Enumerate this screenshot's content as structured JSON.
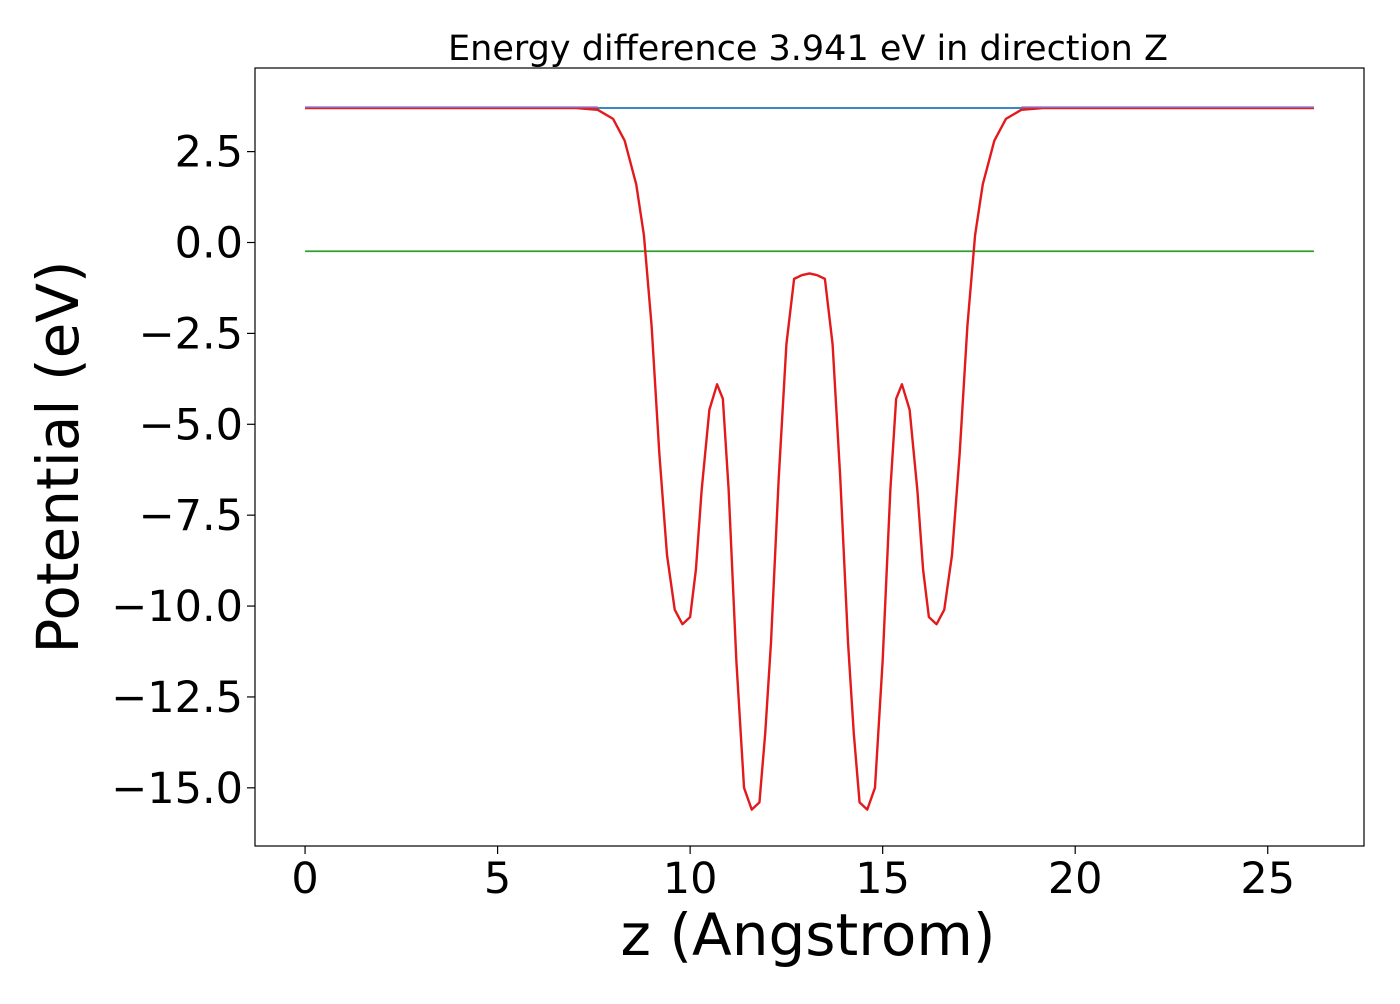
{
  "chart_data": {
    "type": "line",
    "title": "Energy difference 3.941 eV in direction Z",
    "xlabel": "z (Angstrom)",
    "ylabel": "Potential (eV)",
    "xlim": [
      -1.3,
      27.5
    ],
    "ylim": [
      -16.6,
      4.8
    ],
    "xticks": [
      0,
      5,
      10,
      15,
      20,
      25
    ],
    "xtick_labels": [
      "0",
      "5",
      "10",
      "15",
      "20",
      "25"
    ],
    "yticks": [
      2.5,
      0.0,
      -2.5,
      -5.0,
      -7.5,
      -10.0,
      -12.5,
      -15.0
    ],
    "ytick_labels": [
      "2.5",
      "0.0",
      "−2.5",
      "−5.0",
      "−7.5",
      "−10.0",
      "−12.5",
      "−15.0"
    ],
    "grid": false,
    "legend": "none",
    "series": [
      {
        "color": "#1f77b4",
        "x": [
          0,
          26.2
        ],
        "y": [
          3.7,
          3.7
        ]
      },
      {
        "color": "#2ca02c",
        "x": [
          0,
          26.2
        ],
        "y": [
          -0.24,
          -0.24
        ]
      },
      {
        "color": "#e31a1c",
        "x": [
          0,
          7.0,
          7.6,
          8.0,
          8.3,
          8.6,
          8.8,
          9.0,
          9.2,
          9.4,
          9.6,
          9.8,
          10.0,
          10.15,
          10.3,
          10.5,
          10.7,
          10.85,
          11.0,
          11.2,
          11.4,
          11.6,
          11.8,
          11.95,
          12.1,
          12.3,
          12.5,
          12.7,
          12.9,
          13.1,
          13.3,
          13.5,
          13.7,
          13.9,
          14.1,
          14.25,
          14.4,
          14.6,
          14.8,
          15.0,
          15.2,
          15.35,
          15.5,
          15.7,
          15.9,
          16.05,
          16.2,
          16.4,
          16.6,
          16.8,
          17.0,
          17.2,
          17.4,
          17.6,
          17.9,
          18.2,
          18.6,
          19.2,
          26.2
        ],
        "y": [
          3.7,
          3.7,
          3.65,
          3.4,
          2.8,
          1.6,
          0.2,
          -2.3,
          -5.8,
          -8.6,
          -10.1,
          -10.5,
          -10.3,
          -9.0,
          -6.8,
          -4.6,
          -3.9,
          -4.3,
          -6.8,
          -11.5,
          -15.0,
          -15.6,
          -15.4,
          -13.5,
          -11.0,
          -6.5,
          -2.8,
          -1.0,
          -0.9,
          -0.85,
          -0.9,
          -1.0,
          -2.8,
          -6.5,
          -11.0,
          -13.5,
          -15.4,
          -15.6,
          -15.0,
          -11.5,
          -6.8,
          -4.3,
          -3.9,
          -4.6,
          -6.8,
          -9.0,
          -10.3,
          -10.5,
          -10.1,
          -8.6,
          -5.8,
          -2.3,
          0.2,
          1.6,
          2.8,
          3.4,
          3.65,
          3.7,
          3.7
        ]
      },
      {
        "color": "#9467bd",
        "x": [
          0,
          7.6
        ],
        "y": [
          3.72,
          3.72
        ]
      },
      {
        "color": "#9467bd",
        "x": [
          18.6,
          26.2
        ],
        "y": [
          3.72,
          3.72
        ]
      }
    ]
  }
}
